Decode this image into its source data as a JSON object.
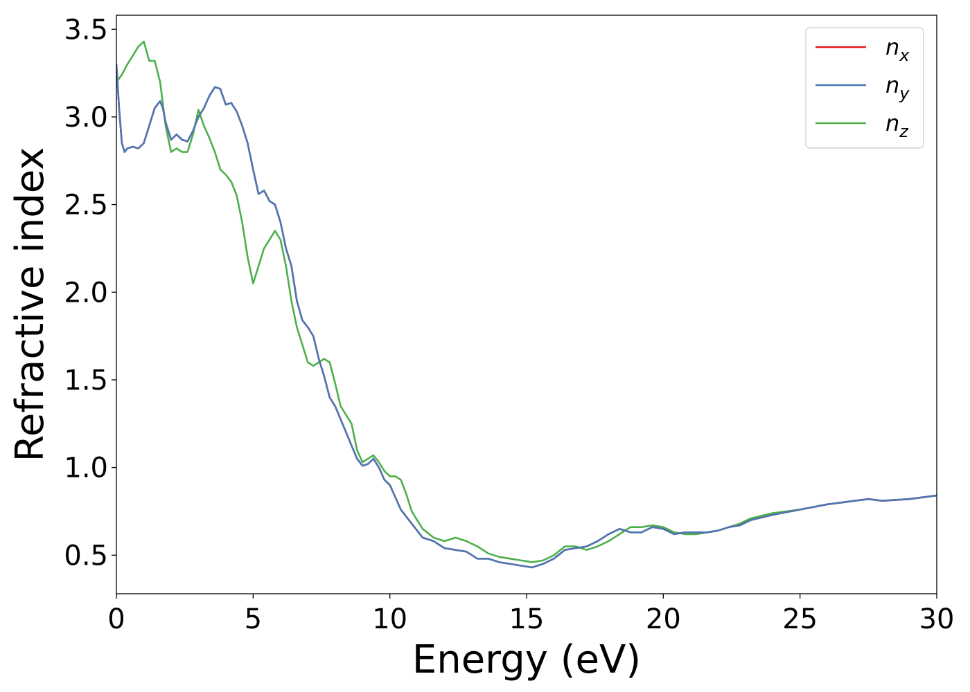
{
  "chart_data": {
    "type": "line",
    "title": "",
    "xlabel": "Energy (eV)",
    "ylabel": "Refractive index",
    "xlim": [
      0,
      30
    ],
    "ylim": [
      0.28,
      3.58
    ],
    "xticks": [
      0,
      5,
      10,
      15,
      20,
      25,
      30
    ],
    "xtick_labels": [
      "0",
      "5",
      "10",
      "15",
      "20",
      "25",
      "30"
    ],
    "yticks": [
      0.5,
      1.0,
      1.5,
      2.0,
      2.5,
      3.0,
      3.5
    ],
    "ytick_labels": [
      "0.5",
      "1.0",
      "1.5",
      "2.0",
      "2.5",
      "3.0",
      "3.5"
    ],
    "grid": false,
    "legend_position": "top-right",
    "series": [
      {
        "name": "n",
        "subscript": "x",
        "color": "#e41a1c",
        "x": [
          0,
          0.1,
          0.2,
          0.3,
          0.4,
          0.6,
          0.8,
          1.0,
          1.2,
          1.4,
          1.6,
          1.7,
          1.8,
          2.0,
          2.2,
          2.4,
          2.6,
          2.8,
          3.0,
          3.2,
          3.4,
          3.6,
          3.8,
          4.0,
          4.2,
          4.4,
          4.6,
          4.8,
          5.0,
          5.2,
          5.4,
          5.6,
          5.8,
          6.0,
          6.2,
          6.4,
          6.6,
          6.8,
          7.0,
          7.2,
          7.4,
          7.6,
          7.8,
          8.0,
          8.4,
          8.8,
          9.0,
          9.2,
          9.4,
          9.6,
          9.8,
          10.0,
          10.4,
          10.8,
          11.2,
          11.6,
          12.0,
          12.4,
          12.8,
          13.2,
          13.6,
          14.0,
          14.4,
          14.8,
          15.2,
          15.6,
          16.0,
          16.4,
          16.8,
          17.2,
          17.6,
          18.0,
          18.4,
          18.8,
          19.2,
          19.6,
          20.0,
          20.4,
          20.8,
          21.2,
          21.6,
          22.0,
          22.4,
          22.8,
          23.2,
          24.0,
          25.0,
          26.0,
          26.5,
          27.0,
          27.5,
          28.0,
          29.0,
          30.0
        ],
        "y": [
          3.3,
          3.05,
          2.85,
          2.8,
          2.82,
          2.83,
          2.82,
          2.85,
          2.95,
          3.05,
          3.09,
          3.05,
          2.97,
          2.87,
          2.9,
          2.87,
          2.86,
          2.92,
          3.0,
          3.05,
          3.12,
          3.17,
          3.16,
          3.07,
          3.08,
          3.03,
          2.95,
          2.85,
          2.7,
          2.56,
          2.58,
          2.52,
          2.5,
          2.4,
          2.25,
          2.15,
          1.95,
          1.84,
          1.8,
          1.75,
          1.62,
          1.52,
          1.4,
          1.35,
          1.2,
          1.05,
          1.01,
          1.02,
          1.05,
          1.0,
          0.93,
          0.9,
          0.76,
          0.68,
          0.6,
          0.58,
          0.54,
          0.53,
          0.52,
          0.48,
          0.48,
          0.46,
          0.45,
          0.44,
          0.43,
          0.45,
          0.48,
          0.53,
          0.54,
          0.55,
          0.58,
          0.62,
          0.65,
          0.63,
          0.63,
          0.66,
          0.65,
          0.62,
          0.63,
          0.63,
          0.63,
          0.64,
          0.66,
          0.67,
          0.7,
          0.73,
          0.76,
          0.79,
          0.8,
          0.81,
          0.82,
          0.81,
          0.82,
          0.84
        ]
      },
      {
        "name": "n",
        "subscript": "y",
        "color": "#4a78b5",
        "x": [
          0,
          0.1,
          0.2,
          0.3,
          0.4,
          0.6,
          0.8,
          1.0,
          1.2,
          1.4,
          1.6,
          1.7,
          1.8,
          2.0,
          2.2,
          2.4,
          2.6,
          2.8,
          3.0,
          3.2,
          3.4,
          3.6,
          3.8,
          4.0,
          4.2,
          4.4,
          4.6,
          4.8,
          5.0,
          5.2,
          5.4,
          5.6,
          5.8,
          6.0,
          6.2,
          6.4,
          6.6,
          6.8,
          7.0,
          7.2,
          7.4,
          7.6,
          7.8,
          8.0,
          8.4,
          8.8,
          9.0,
          9.2,
          9.4,
          9.6,
          9.8,
          10.0,
          10.4,
          10.8,
          11.2,
          11.6,
          12.0,
          12.4,
          12.8,
          13.2,
          13.6,
          14.0,
          14.4,
          14.8,
          15.2,
          15.6,
          16.0,
          16.4,
          16.8,
          17.2,
          17.6,
          18.0,
          18.4,
          18.8,
          19.2,
          19.6,
          20.0,
          20.4,
          20.8,
          21.2,
          21.6,
          22.0,
          22.4,
          22.8,
          23.2,
          24.0,
          25.0,
          26.0,
          26.5,
          27.0,
          27.5,
          28.0,
          29.0,
          30.0
        ],
        "y": [
          3.3,
          3.05,
          2.85,
          2.8,
          2.82,
          2.83,
          2.82,
          2.85,
          2.95,
          3.05,
          3.09,
          3.05,
          2.97,
          2.87,
          2.9,
          2.87,
          2.86,
          2.92,
          3.0,
          3.05,
          3.12,
          3.17,
          3.16,
          3.07,
          3.08,
          3.03,
          2.95,
          2.85,
          2.7,
          2.56,
          2.58,
          2.52,
          2.5,
          2.4,
          2.25,
          2.15,
          1.95,
          1.84,
          1.8,
          1.75,
          1.62,
          1.52,
          1.4,
          1.35,
          1.2,
          1.05,
          1.01,
          1.02,
          1.05,
          1.0,
          0.93,
          0.9,
          0.76,
          0.68,
          0.6,
          0.58,
          0.54,
          0.53,
          0.52,
          0.48,
          0.48,
          0.46,
          0.45,
          0.44,
          0.43,
          0.45,
          0.48,
          0.53,
          0.54,
          0.55,
          0.58,
          0.62,
          0.65,
          0.63,
          0.63,
          0.66,
          0.65,
          0.62,
          0.63,
          0.63,
          0.63,
          0.64,
          0.66,
          0.67,
          0.7,
          0.73,
          0.76,
          0.79,
          0.8,
          0.81,
          0.82,
          0.81,
          0.82,
          0.84
        ]
      },
      {
        "name": "n",
        "subscript": "z",
        "color": "#4daf4a",
        "x": [
          0,
          0.2,
          0.4,
          0.6,
          0.8,
          1.0,
          1.2,
          1.4,
          1.6,
          1.8,
          2.0,
          2.2,
          2.4,
          2.6,
          2.8,
          3.0,
          3.2,
          3.4,
          3.6,
          3.8,
          4.0,
          4.2,
          4.4,
          4.6,
          4.8,
          5.0,
          5.2,
          5.4,
          5.6,
          5.8,
          6.0,
          6.2,
          6.4,
          6.6,
          6.8,
          7.0,
          7.2,
          7.4,
          7.6,
          7.8,
          8.0,
          8.2,
          8.4,
          8.6,
          8.8,
          9.0,
          9.2,
          9.4,
          9.6,
          9.8,
          10.0,
          10.2,
          10.4,
          10.6,
          10.8,
          11.2,
          11.6,
          12.0,
          12.4,
          12.8,
          13.2,
          13.6,
          14.0,
          14.4,
          14.8,
          15.2,
          15.6,
          16.0,
          16.4,
          16.8,
          17.2,
          17.6,
          18.0,
          18.4,
          18.8,
          19.2,
          19.6,
          20.0,
          20.4,
          20.8,
          21.2,
          21.6,
          22.0,
          22.4,
          22.8,
          23.2,
          24.0,
          25.0,
          26.0,
          26.5,
          27.0,
          27.5,
          28.0,
          29.0,
          30.0
        ],
        "y": [
          3.2,
          3.24,
          3.3,
          3.35,
          3.4,
          3.43,
          3.32,
          3.32,
          3.2,
          2.95,
          2.8,
          2.82,
          2.8,
          2.8,
          2.9,
          3.04,
          2.95,
          2.88,
          2.8,
          2.7,
          2.67,
          2.63,
          2.55,
          2.4,
          2.2,
          2.05,
          2.15,
          2.25,
          2.3,
          2.35,
          2.3,
          2.15,
          1.95,
          1.8,
          1.7,
          1.6,
          1.58,
          1.6,
          1.62,
          1.6,
          1.48,
          1.35,
          1.3,
          1.25,
          1.1,
          1.03,
          1.05,
          1.07,
          1.03,
          0.98,
          0.95,
          0.95,
          0.93,
          0.85,
          0.75,
          0.65,
          0.6,
          0.58,
          0.6,
          0.58,
          0.55,
          0.51,
          0.49,
          0.48,
          0.47,
          0.46,
          0.47,
          0.5,
          0.55,
          0.55,
          0.53,
          0.55,
          0.58,
          0.62,
          0.66,
          0.66,
          0.67,
          0.66,
          0.63,
          0.62,
          0.62,
          0.63,
          0.64,
          0.66,
          0.68,
          0.71,
          0.74,
          0.76,
          0.79,
          0.8,
          0.81,
          0.82,
          0.81,
          0.82,
          0.84
        ]
      }
    ]
  }
}
